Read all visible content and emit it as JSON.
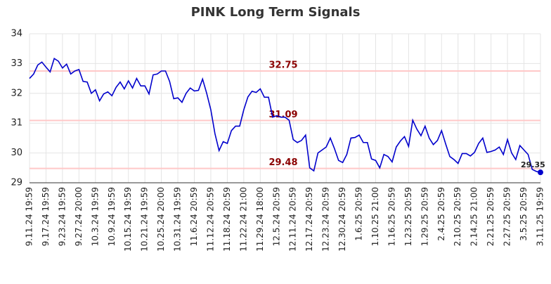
{
  "chart_data": {
    "type": "line",
    "title": "PINK Long Term Signals",
    "categories": [
      "9.11.24 19:59",
      null,
      null,
      null,
      "9.17.24 19:59",
      null,
      null,
      null,
      "9.23.24 19:59",
      null,
      null,
      null,
      "9.27.24 20:00",
      null,
      null,
      null,
      "10.3.24 19:59",
      null,
      null,
      null,
      "10.9.24 19:59",
      null,
      null,
      null,
      "10.15.24 19:59",
      null,
      null,
      null,
      "10.21.24 19:59",
      null,
      null,
      null,
      "10.25.24 20:00",
      null,
      null,
      null,
      "10.31.24 19:59",
      null,
      null,
      null,
      "11.6.24 20:59",
      null,
      null,
      null,
      "11.12.24 20:59",
      null,
      null,
      null,
      "11.18.24 20:59",
      null,
      null,
      null,
      "11.22.24 21:00",
      null,
      null,
      null,
      "11.29.24 18:00",
      null,
      null,
      null,
      "12.5.24 20:59",
      null,
      null,
      null,
      "12.11.24 20:59",
      null,
      null,
      null,
      "12.17.24 20:59",
      null,
      null,
      null,
      "12.23.24 20:59",
      null,
      null,
      null,
      "12.30.24 20:59",
      null,
      null,
      null,
      "1.6.25 20:59",
      null,
      null,
      null,
      "1.10.25 21:00",
      null,
      null,
      null,
      "1.16.25 20:59",
      null,
      null,
      null,
      "1.23.25 20:59",
      null,
      null,
      null,
      "1.29.25 20:59",
      null,
      null,
      null,
      "2.4.25 20:59",
      null,
      null,
      null,
      "2.10.25 20:59",
      null,
      null,
      null,
      "2.14.25 21:00",
      null,
      null,
      null,
      "2.21.25 20:59",
      null,
      null,
      null,
      "2.27.25 20:59",
      null,
      null,
      null,
      "3.5.25 20:59",
      null,
      null,
      null,
      "3.11.25 19:59"
    ],
    "series": [
      {
        "color": "#0000cc",
        "values": [
          32.5,
          32.65,
          32.95,
          33.05,
          32.88,
          32.72,
          33.17,
          33.08,
          32.85,
          32.98,
          32.65,
          32.75,
          32.8,
          32.4,
          32.38,
          32.0,
          32.12,
          31.75,
          31.98,
          32.05,
          31.92,
          32.2,
          32.38,
          32.15,
          32.42,
          32.18,
          32.5,
          32.25,
          32.25,
          31.98,
          32.62,
          32.65,
          32.75,
          32.75,
          32.4,
          31.82,
          31.85,
          31.7,
          32.0,
          32.18,
          32.08,
          32.1,
          32.48,
          32.0,
          31.45,
          30.65,
          30.08,
          30.38,
          30.32,
          30.75,
          30.9,
          30.9,
          31.45,
          31.88,
          32.07,
          32.03,
          32.15,
          31.87,
          31.87,
          31.2,
          31.25,
          31.2,
          31.2,
          31.1,
          30.45,
          30.35,
          30.42,
          30.6,
          29.5,
          29.4,
          30.0,
          30.1,
          30.2,
          30.5,
          30.15,
          29.75,
          29.68,
          29.95,
          30.5,
          30.52,
          30.6,
          30.35,
          30.35,
          29.8,
          29.75,
          29.5,
          29.95,
          29.88,
          29.7,
          30.2,
          30.4,
          30.55,
          30.22,
          31.1,
          30.8,
          30.58,
          30.9,
          30.5,
          30.28,
          30.42,
          30.75,
          30.3,
          29.88,
          29.78,
          29.65,
          29.98,
          29.98,
          29.9,
          30.02,
          30.32,
          30.5,
          30.02,
          30.05,
          30.1,
          30.2,
          29.95,
          30.45,
          30.0,
          29.78,
          30.25,
          30.1,
          29.95,
          29.45,
          29.38,
          29.35
        ]
      }
    ],
    "levels": [
      32.75,
      31.09,
      29.48
    ],
    "level_color": "#ffc8c8",
    "level_label_color": "#8b0000",
    "ylim": [
      29,
      34
    ],
    "yticks": [
      29,
      30,
      31,
      32,
      33,
      34
    ],
    "grid": true
  }
}
